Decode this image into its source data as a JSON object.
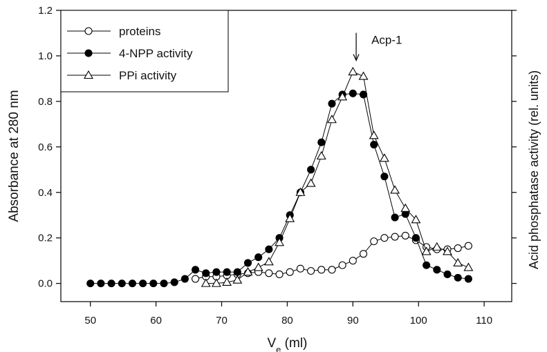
{
  "chart_data": {
    "type": "line",
    "x_label": [
      "V",
      "e",
      " (ml)"
    ],
    "y_label": "Absorbance at 280 nm",
    "y2_label": "Acid phosphatase activity (rel. units)",
    "annotation": {
      "text": "Acp-1",
      "x": 90.5,
      "y": 0.98
    },
    "xlim": [
      45.5,
      114.2
    ],
    "ylim": [
      -0.08,
      1.2
    ],
    "xticks": [
      50,
      60,
      70,
      80,
      90,
      100,
      110
    ],
    "yticks": [
      {
        "value": 0,
        "label": "0.0"
      },
      {
        "value": 0.2,
        "label": "0.2"
      },
      {
        "value": 0.4,
        "label": "0.4"
      },
      {
        "value": 0.6,
        "label": "0.6"
      },
      {
        "value": 0.8,
        "label": "0.8"
      },
      {
        "value": 1.0,
        "label": "1.0"
      },
      {
        "value": 1.2,
        "label": "1.2"
      }
    ],
    "legend": "top-left",
    "series": [
      {
        "name": "proteins",
        "color": "#000000",
        "marker": "circle-open",
        "x": [
          66,
          67.6,
          69.2,
          70.8,
          72.4,
          74,
          75.6,
          77.2,
          78.8,
          80.4,
          82,
          83.6,
          85.2,
          86.8,
          88.4,
          90,
          91.6,
          93.2,
          94.8,
          96.4,
          98,
          99.6,
          101.2,
          102.8,
          104.4,
          106,
          107.6
        ],
        "values": [
          0.02,
          0.03,
          0.03,
          0.035,
          0.04,
          0.045,
          0.05,
          0.045,
          0.04,
          0.05,
          0.065,
          0.055,
          0.06,
          0.06,
          0.08,
          0.1,
          0.13,
          0.185,
          0.2,
          0.205,
          0.21,
          0.19,
          0.16,
          0.15,
          0.15,
          0.155,
          0.165
        ]
      },
      {
        "name": "4-NPP activity",
        "color": "#000000",
        "marker": "circle-filled",
        "x": [
          50,
          51.6,
          53.2,
          54.8,
          56.4,
          58,
          59.6,
          61.2,
          62.8,
          64.4,
          66,
          67.6,
          69.2,
          70.8,
          72.4,
          74,
          75.6,
          77.2,
          78.8,
          80.4,
          82,
          83.6,
          85.2,
          86.8,
          88.4,
          90,
          91.6,
          93.2,
          94.8,
          96.4,
          98,
          99.6,
          101.2,
          102.8,
          104.4,
          106,
          107.6
        ],
        "values": [
          0,
          0,
          0,
          0,
          0,
          0,
          0,
          0,
          0.005,
          0.02,
          0.06,
          0.045,
          0.05,
          0.05,
          0.05,
          0.09,
          0.115,
          0.15,
          0.2,
          0.3,
          0.4,
          0.5,
          0.62,
          0.79,
          0.83,
          0.835,
          0.83,
          0.61,
          0.47,
          0.29,
          0.305,
          0.2,
          0.08,
          0.06,
          0.04,
          0.025,
          0.02
        ]
      },
      {
        "name": "PPi activity",
        "color": "#000000",
        "marker": "triangle-open",
        "x": [
          67.6,
          69.2,
          70.8,
          72.4,
          74,
          75.6,
          77.2,
          78.8,
          80.4,
          82,
          83.6,
          85.2,
          86.8,
          88.4,
          90,
          91.6,
          93.2,
          94.8,
          96.4,
          98,
          99.6,
          101.2,
          102.8,
          104.4,
          106,
          107.6
        ],
        "values": [
          0,
          0,
          0.005,
          0.015,
          0.05,
          0.07,
          0.095,
          0.18,
          0.285,
          0.4,
          0.44,
          0.56,
          0.72,
          0.82,
          0.93,
          0.91,
          0.65,
          0.55,
          0.41,
          0.33,
          0.28,
          0.14,
          0.16,
          0.14,
          0.09,
          0.07
        ]
      }
    ]
  }
}
